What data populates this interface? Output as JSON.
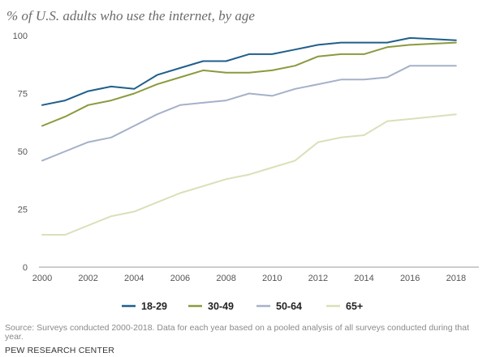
{
  "chart_data": {
    "type": "line",
    "title": "% of U.S. adults who use the internet, by age",
    "xlabel": "",
    "ylabel": "",
    "x": [
      2000,
      2001,
      2002,
      2003,
      2004,
      2005,
      2006,
      2007,
      2008,
      2009,
      2010,
      2011,
      2012,
      2013,
      2014,
      2015,
      2016,
      2017,
      2018
    ],
    "xticks": [
      "2000",
      "2002",
      "2004",
      "2006",
      "2008",
      "2010",
      "2012",
      "2014",
      "2016",
      "2018"
    ],
    "yticks": [
      "0",
      "25",
      "50",
      "75",
      "100"
    ],
    "ylim": [
      0,
      100
    ],
    "xlim": [
      2000,
      2018.5
    ],
    "grid": false,
    "legend_position": "bottom",
    "series": [
      {
        "name": "18-29",
        "color": "#1f5f8b",
        "values": [
          70,
          72,
          76,
          78,
          77,
          83,
          86,
          89,
          89,
          92,
          92,
          94,
          96,
          97,
          97,
          97,
          99,
          98.5,
          98
        ]
      },
      {
        "name": "30-49",
        "color": "#8a9a3e",
        "values": [
          61,
          65,
          70,
          72,
          75,
          79,
          82,
          85,
          84,
          84,
          85,
          87,
          91,
          92,
          92,
          95,
          96,
          96.5,
          97
        ]
      },
      {
        "name": "50-64",
        "color": "#a4b1c9",
        "values": [
          46,
          50,
          54,
          56,
          61,
          66,
          70,
          71,
          72,
          75,
          74,
          77,
          79,
          81,
          81,
          82,
          87,
          87,
          87
        ]
      },
      {
        "name": "65+",
        "color": "#d9e0b8",
        "values": [
          14,
          14,
          18,
          22,
          24,
          28,
          32,
          35,
          38,
          40,
          43,
          46,
          54,
          56,
          57,
          63,
          64,
          65,
          66
        ]
      }
    ]
  },
  "footer": {
    "source": "Source: Surveys conducted 2000-2018. Data for each year based on a pooled analysis of all surveys conducted during that year.",
    "brand": "PEW RESEARCH CENTER"
  }
}
